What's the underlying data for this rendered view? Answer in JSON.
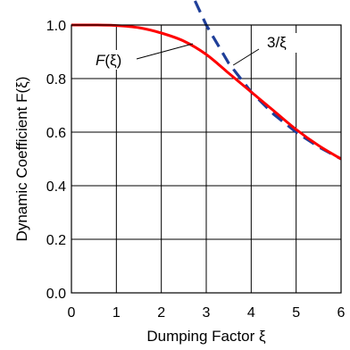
{
  "chart_data": {
    "type": "line",
    "xlabel": "Dumping Factor ξ",
    "ylabel": "Dynamic Coefficient F(ξ)",
    "xlim": [
      0,
      6
    ],
    "ylim": [
      0.0,
      1.0
    ],
    "x_ticks": [
      "0",
      "1",
      "2",
      "3",
      "4",
      "5",
      "6"
    ],
    "y_ticks": [
      "0.0",
      "0.2",
      "0.4",
      "0.6",
      "0.8",
      "1.0"
    ],
    "grid": true,
    "series": [
      {
        "name": "F(ξ)",
        "color": "#ff0000",
        "style": "solid",
        "x": [
          0,
          0.5,
          1.0,
          1.5,
          2.0,
          2.5,
          3.0,
          3.5,
          4.0,
          4.5,
          5.0,
          5.5,
          6.0
        ],
        "y": [
          1.0,
          1.0,
          0.998,
          0.99,
          0.97,
          0.94,
          0.89,
          0.82,
          0.75,
          0.68,
          0.61,
          0.55,
          0.5
        ]
      },
      {
        "name": "3/ξ",
        "color": "#1f3f99",
        "style": "dashed",
        "x": [
          2.75,
          3.0,
          3.5,
          4.0,
          4.5,
          5.0,
          5.5,
          6.0
        ],
        "y": [
          1.09,
          1.0,
          0.857,
          0.75,
          0.667,
          0.6,
          0.545,
          0.5
        ]
      }
    ],
    "annotations": [
      {
        "text_pre": "F",
        "text_post": "(ξ)",
        "points_to": [
          2.7,
          0.93
        ]
      },
      {
        "text": "3/ξ",
        "points_to": [
          3.6,
          0.85
        ]
      }
    ]
  }
}
